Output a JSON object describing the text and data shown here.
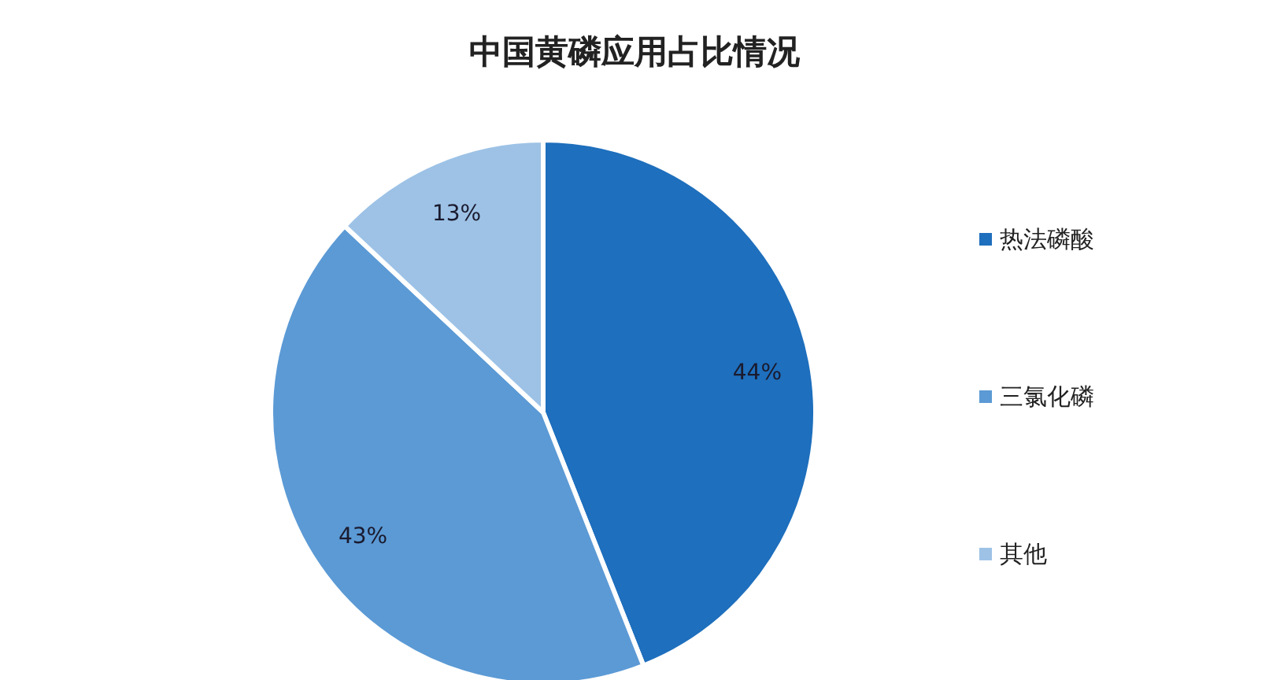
{
  "chart_data": {
    "type": "pie",
    "title": "中国黄磷应用占比情况",
    "categories": [
      "热法磷酸",
      "三氯化磷",
      "其他"
    ],
    "values": [
      44,
      43,
      13
    ],
    "colors": [
      "#1e6fbd",
      "#5b9ad5",
      "#9dc2e6"
    ],
    "value_labels": [
      "44%",
      "43%",
      "13%"
    ],
    "legend": "right"
  }
}
